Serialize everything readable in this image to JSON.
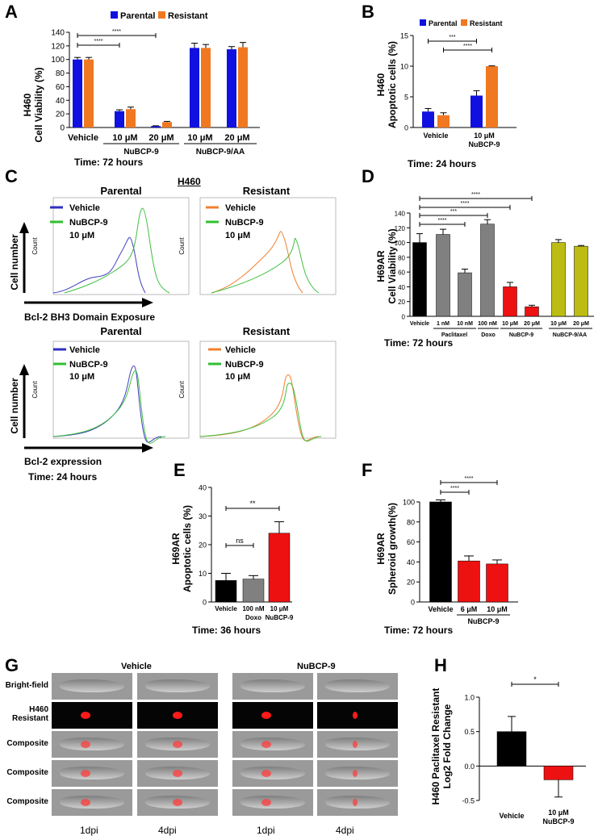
{
  "panels": {
    "A": {
      "letter": "A",
      "ylabel1": "H460",
      "ylabel2": "Cell Viability (%)",
      "time": "Time: 72 hours",
      "legend": [
        "Parental",
        "Resistant"
      ],
      "group_labels": [
        "NuBCP-9",
        "NuBCP-9/AA"
      ],
      "sig": [
        "****",
        "****"
      ]
    },
    "B": {
      "letter": "B",
      "ylabel1": "H460",
      "ylabel2": "Apoptotic cells (%)",
      "time": "Time: 24 hours",
      "legend": [
        "Parental",
        "Resistant"
      ],
      "sig": [
        "***",
        "****"
      ],
      "drug_label": "NuBCP-9"
    },
    "C": {
      "letter": "C",
      "title": "H460",
      "top_parental": "Parental",
      "top_resistant": "Resistant",
      "bottom_parental": "Parental",
      "bottom_resistant": "Resistant",
      "legend_vehicle": "Vehicle",
      "legend_drug": "NuBCP-9",
      "legend_dose": "10 μM",
      "yaxis": "Cell number",
      "count": "Count",
      "xaxis_top": "Bcl-2 BH3 Domain Exposure",
      "xaxis_bottom": "Bcl-2 expression",
      "time": "Time: 24 hours"
    },
    "D": {
      "letter": "D",
      "ylabel1": "H69AR",
      "ylabel2": "Cell Viability (%)",
      "time": "Time: 72 hours",
      "group_labels": [
        "Paclitaxel",
        "Doxo",
        "NuBCP-9",
        "NuBCP-9/AA"
      ],
      "sig": [
        "****",
        "***",
        "****",
        "****"
      ]
    },
    "E": {
      "letter": "E",
      "ylabel1": "H69AR",
      "ylabel2": "Apoptotic cells (%)",
      "time": "Time: 36 hours",
      "sig": [
        "ns",
        "**"
      ],
      "sublabels": [
        "Doxo",
        "NuBCP-9"
      ]
    },
    "F": {
      "letter": "F",
      "ylabel1": "H69AR",
      "ylabel2": "Spheroid growth(%)",
      "time": "Time: 72 hours",
      "sig": [
        "****",
        "****"
      ],
      "group_label": "NuBCP-9"
    },
    "G": {
      "letter": "G",
      "col_vehicle": "Vehicle",
      "col_drug": "NuBCP-9",
      "rows": [
        "Bright-field",
        "H460 Resistant",
        "Composite",
        "Composite",
        "Composite"
      ],
      "timepoints": [
        "1dpi",
        "4dpi",
        "1dpi",
        "4dpi"
      ]
    },
    "H": {
      "letter": "H",
      "ylabel1": "H460 Paclitaxel Resistant",
      "ylabel2": "Log2 Fold Change",
      "sig": "*",
      "drug_label": "NuBCP-9"
    }
  },
  "chart_data": [
    {
      "panel": "A",
      "type": "bar",
      "categories": [
        "Vehicle",
        "10 μM",
        "20 μM",
        "10 μM",
        "20 μM"
      ],
      "series": [
        {
          "name": "Parental",
          "values": [
            100,
            24,
            2,
            117,
            115
          ],
          "errors": [
            3,
            2,
            0.5,
            7,
            4
          ],
          "color": "#1010e0"
        },
        {
          "name": "Resistant",
          "values": [
            100,
            27,
            8,
            117,
            118
          ],
          "errors": [
            3,
            3,
            1,
            5,
            7
          ],
          "color": "#f07820"
        }
      ],
      "ylim": [
        0,
        140
      ],
      "yticks": [
        0,
        20,
        40,
        60,
        80,
        100,
        120,
        140
      ]
    },
    {
      "panel": "B",
      "type": "bar",
      "categories": [
        "Vehicle",
        "10 μM"
      ],
      "series": [
        {
          "name": "Parental",
          "values": [
            2.6,
            5.2
          ],
          "errors": [
            0.5,
            0.8
          ],
          "color": "#1010e0"
        },
        {
          "name": "Resistant",
          "values": [
            2.0,
            10.0
          ],
          "errors": [
            0.4,
            0.05
          ],
          "color": "#f07820"
        }
      ],
      "ylim": [
        0,
        15
      ],
      "yticks": [
        0,
        5,
        10,
        15
      ]
    },
    {
      "panel": "D",
      "type": "bar",
      "categories": [
        "Vehicle",
        "1 nM",
        "10 nM",
        "100 nM",
        "10 μM",
        "20 μM",
        "10 μM",
        "20 μM"
      ],
      "values": [
        100,
        111,
        59,
        125,
        40,
        13,
        100,
        95
      ],
      "errors": [
        12,
        7,
        5,
        6,
        6,
        2,
        4,
        1
      ],
      "colors": [
        "#000000",
        "#808080",
        "#808080",
        "#808080",
        "#ee1111",
        "#ee1111",
        "#bcbc14",
        "#bcbc14"
      ],
      "ylim": [
        0,
        140
      ],
      "yticks": [
        0,
        20,
        40,
        60,
        80,
        100,
        120,
        140
      ]
    },
    {
      "panel": "E",
      "type": "bar",
      "categories": [
        "Vehicle",
        "100 nM",
        "10 μM"
      ],
      "values": [
        7.5,
        8.0,
        24.0
      ],
      "errors": [
        2.5,
        1.2,
        4.0
      ],
      "colors": [
        "#000000",
        "#808080",
        "#ee1111"
      ],
      "ylim": [
        0,
        40
      ],
      "yticks": [
        0,
        10,
        20,
        30,
        40
      ]
    },
    {
      "panel": "F",
      "type": "bar",
      "categories": [
        "Vehicle",
        "6 μM",
        "10 μM"
      ],
      "values": [
        100,
        41,
        38
      ],
      "errors": [
        2,
        5,
        4
      ],
      "colors": [
        "#000000",
        "#ee1111",
        "#ee1111"
      ],
      "ylim": [
        0,
        100
      ],
      "yticks": [
        0,
        20,
        40,
        60,
        80,
        100
      ]
    },
    {
      "panel": "H",
      "type": "bar",
      "categories": [
        "Vehicle",
        "10 μM"
      ],
      "values": [
        0.5,
        -0.2
      ],
      "errors": [
        0.22,
        0.25
      ],
      "colors": [
        "#000000",
        "#ee1111"
      ],
      "ylim": [
        -0.5,
        1.0
      ],
      "yticks": [
        -0.5,
        0.0,
        0.5,
        1.0
      ]
    }
  ]
}
